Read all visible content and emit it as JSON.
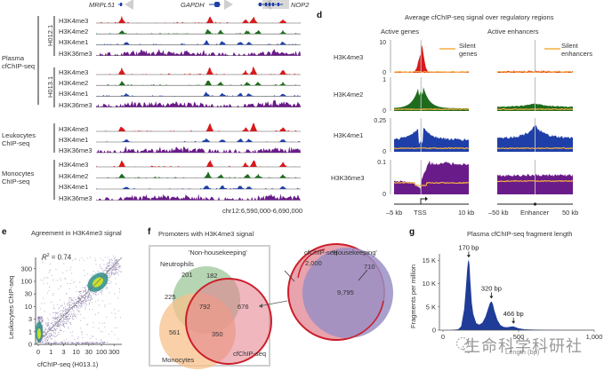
{
  "colors": {
    "h3k4me3": "#d7191c",
    "h3k4me2": "#1e6b1e",
    "h3k4me1": "#1f3fa8",
    "h3k36me3": "#6a1b8a",
    "silent": "#f6b040",
    "grey": "#999999",
    "cfchip_red": "#cc1f2a",
    "hist_blue": "#1f3c99"
  },
  "panel_tracks": {
    "genes": [
      {
        "name": "MRPL51",
        "direction": "left"
      },
      {
        "name": "GAPDH",
        "direction": "right"
      },
      {
        "name": "NOP2",
        "direction": "left"
      }
    ],
    "groups": [
      {
        "label": "Plasma\ncfChIP-seq",
        "label_lines": [
          "Plasma",
          "cfChIP-seq"
        ],
        "subgroups": [
          {
            "sample": "H012.1",
            "tracks": [
              "H3K4me3",
              "H3K4me2",
              "H3K4me1",
              "H3K36me3"
            ]
          },
          {
            "sample": "H013.1",
            "tracks": [
              "H3K4me3",
              "H3K4me2",
              "H3K4me1",
              "H3K36me3"
            ]
          }
        ]
      },
      {
        "label_lines": [
          "Leukocytes",
          "ChIP-seq"
        ],
        "tracks": [
          "H3K4me3",
          "H3K4me1",
          "H3K36me3"
        ]
      },
      {
        "label_lines": [
          "Monocytes",
          "ChIP-seq"
        ],
        "tracks": [
          "H3K4me3",
          "H3K4me2",
          "H3K4me1",
          "H3K36me3"
        ]
      }
    ],
    "coordinates": "chr12:6,590,000-6,690,000"
  },
  "panel_d": {
    "letter": "d",
    "title": "Average cfChIP-seq signal over regulatory regions",
    "col_titles": [
      "Active genes",
      "Active enhancers"
    ],
    "legend": [
      "Silent genes",
      "Silent enhancers"
    ],
    "legend_lines": [
      [
        "Silent",
        "genes"
      ],
      [
        "Silent",
        "enhancers"
      ]
    ],
    "rows": [
      {
        "mark": "H3K4me3",
        "yticks": [
          "10",
          "0"
        ]
      },
      {
        "mark": "H3K4me2",
        "yticks": [
          "1",
          "0"
        ]
      },
      {
        "mark": "H3K4me1",
        "yticks": [
          "0.25",
          "0"
        ]
      },
      {
        "mark": "H3K36me3",
        "yticks": [
          "0.1",
          "0"
        ]
      }
    ],
    "x_genes": [
      "–5 kb",
      "TSS",
      "10 kb"
    ],
    "x_enh": [
      "–50 kb",
      "Enhancer",
      "50 kb"
    ]
  },
  "panel_e": {
    "letter": "e",
    "title": "Agreement in H3K4me3 signal",
    "r2": "R² = 0.74",
    "r2_prefix": "R",
    "r2_sup": "2",
    "r2_rest": " = 0.74",
    "xlabel": "cfChIP-seq (H013.1)",
    "ylabel": "Leukocytes ChIP-seq",
    "ticks": [
      "0",
      "1",
      "3",
      "10",
      "30",
      "100",
      "300"
    ]
  },
  "panel_f": {
    "letter": "f",
    "title": "Promoters with H3K4me3 signal",
    "left_title": "'Non-housekeeping'",
    "right_title": "'Housekeeping'",
    "sets": [
      "Neutrophils",
      "Monocytes",
      "cfChIP-seq"
    ],
    "left_counts": {
      "neutrophils_only": "201",
      "neut_cf": "182",
      "neut_mono": "225",
      "all_three": "792",
      "cf_only": "676",
      "mono_only": "561",
      "mono_cf": "350"
    },
    "right_label": "cfChIP-seq",
    "right_counts": {
      "cf_only": "2,000",
      "overlap": "9,795",
      "hk_only": "710"
    }
  },
  "chart_data": [
    {
      "type": "area",
      "title": "Plasma cfChIP-seq fragment length",
      "xlabel": "Length (bp)",
      "ylabel": "Fragments per million",
      "xlim": [
        0,
        1000
      ],
      "ylim": [
        0,
        16000
      ],
      "xticks": [
        "0",
        "500",
        "1,000"
      ],
      "yticks": [
        "0",
        "5 K",
        "10 K",
        "15 K"
      ],
      "annotations": [
        {
          "label": "170 bp",
          "x": 170,
          "y": 15000
        },
        {
          "label": "320 bp",
          "x": 320,
          "y": 6200
        },
        {
          "label": "466 bp",
          "x": 466,
          "y": 800
        }
      ],
      "x": [
        0,
        50,
        100,
        120,
        140,
        150,
        160,
        165,
        170,
        175,
        180,
        190,
        200,
        220,
        240,
        260,
        280,
        300,
        310,
        320,
        330,
        340,
        360,
        380,
        400,
        420,
        440,
        460,
        466,
        480,
        500,
        540,
        600,
        700,
        800,
        900,
        1000
      ],
      "values": [
        0,
        50,
        200,
        800,
        4500,
        8500,
        13000,
        14500,
        15200,
        14000,
        11000,
        6000,
        3500,
        1500,
        1200,
        1600,
        2800,
        4800,
        5800,
        6200,
        5600,
        4200,
        2200,
        1100,
        700,
        600,
        700,
        800,
        800,
        650,
        400,
        200,
        120,
        80,
        60,
        40,
        30
      ]
    }
  ],
  "watermark": "生命科学科研社"
}
